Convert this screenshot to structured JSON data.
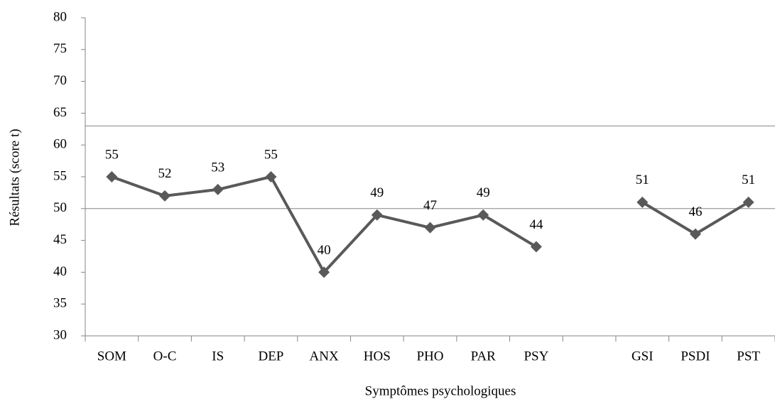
{
  "chart_data": {
    "type": "line",
    "x_label": "Symptômes psychologiques",
    "y_label": "Résultats (score t)",
    "categories": [
      "SOM",
      "O-C",
      "IS",
      "DEP",
      "ANX",
      "HOS",
      "PHO",
      "PAR",
      "PSY",
      null,
      "GSI",
      "PSDI",
      "PST"
    ],
    "series": [
      {
        "name": "score t",
        "color": "#595959",
        "values": [
          55,
          52,
          53,
          55,
          40,
          49,
          47,
          49,
          44,
          null,
          51,
          46,
          51
        ]
      }
    ],
    "ylim": [
      30,
      80
    ],
    "yticks": [
      30,
      35,
      40,
      45,
      50,
      55,
      60,
      65,
      70,
      75,
      80
    ],
    "reference_lines": [
      50,
      63
    ],
    "grid": false,
    "legend": false
  }
}
